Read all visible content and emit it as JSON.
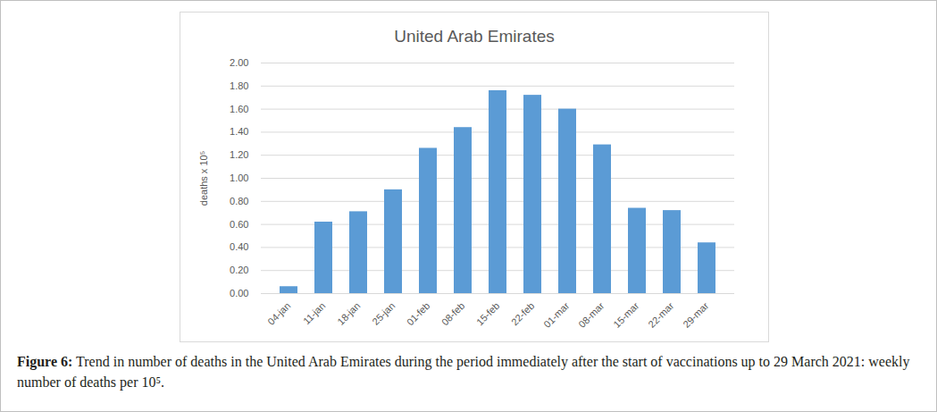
{
  "chart_data": {
    "type": "bar",
    "title": "United Arab Emirates",
    "y_label": "deaths x 10⁵",
    "caption_label": "Figure 6:",
    "caption": "Trend in number of deaths in the United Arab Emirates during the period immediately after the start of vaccinations up to 29 March 2021: weekly number of deaths per 10⁵.",
    "categories": [
      "04-jan",
      "11-jan",
      "18-jan",
      "25-jan",
      "01-feb",
      "08-feb",
      "15-feb",
      "22-feb",
      "01-mar",
      "08-mar",
      "15-mar",
      "22-mar",
      "29-mar"
    ],
    "values": [
      0.06,
      0.62,
      0.71,
      0.9,
      1.26,
      1.44,
      1.76,
      1.72,
      1.6,
      1.29,
      0.74,
      0.72,
      0.44
    ],
    "color": "#5b9bd5",
    "ylim": [
      0,
      2
    ],
    "yticks": [
      {
        "value": 0,
        "label": "0.00"
      },
      {
        "value": 0.2,
        "label": "0.20"
      },
      {
        "value": 0.4,
        "label": "0.40"
      },
      {
        "value": 0.6,
        "label": "0.60"
      },
      {
        "value": 0.8,
        "label": "0.80"
      },
      {
        "value": 1,
        "label": "1.00"
      },
      {
        "value": 1.2,
        "label": "1.20"
      },
      {
        "value": 1.4,
        "label": "1.40"
      },
      {
        "value": 1.6,
        "label": "1.60"
      },
      {
        "value": 1.8,
        "label": "1.80"
      },
      {
        "value": 2,
        "label": "2.00"
      }
    ],
    "grid": true
  }
}
